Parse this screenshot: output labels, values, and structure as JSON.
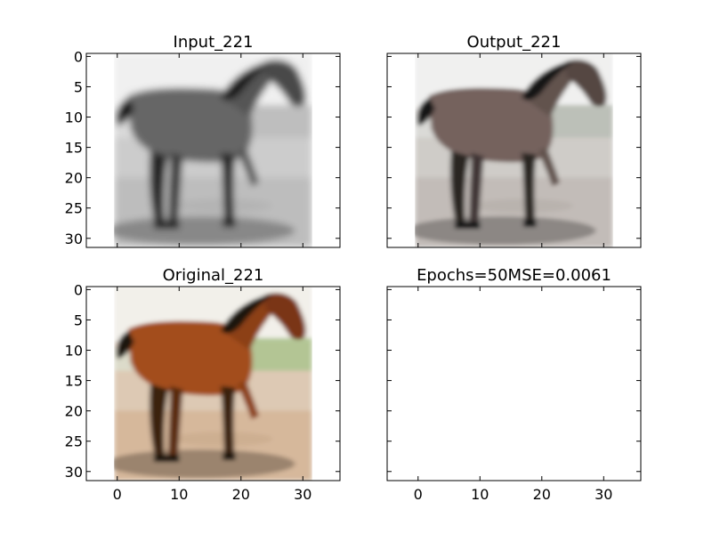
{
  "figure": {
    "background": "#ffffff"
  },
  "chart_data": [
    {
      "type": "image",
      "title": "Input_221",
      "image_shape": [
        32,
        32
      ],
      "colormap": "grayscale",
      "xlim": [
        -5,
        36
      ],
      "ylim": [
        31.5,
        -0.5
      ],
      "xticks": [
        0,
        10,
        20,
        30
      ],
      "yticks": [
        0,
        5,
        10,
        15,
        20,
        25,
        30
      ],
      "show_xtick_labels": false,
      "show_ytick_labels": true,
      "subject": "horse"
    },
    {
      "type": "image",
      "title": "Output_221",
      "image_shape": [
        32,
        32
      ],
      "colormap": "desaturated",
      "xlim": [
        -5,
        36
      ],
      "ylim": [
        31.5,
        -0.5
      ],
      "xticks": [
        0,
        10,
        20,
        30
      ],
      "yticks": [
        0,
        5,
        10,
        15,
        20,
        25,
        30
      ],
      "show_xtick_labels": false,
      "show_ytick_labels": false,
      "subject": "horse"
    },
    {
      "type": "image",
      "title": "Original_221",
      "image_shape": [
        32,
        32
      ],
      "colormap": "rgb",
      "xlim": [
        -5,
        36
      ],
      "ylim": [
        31.5,
        -0.5
      ],
      "xticks": [
        0,
        10,
        20,
        30
      ],
      "yticks": [
        0,
        5,
        10,
        15,
        20,
        25,
        30
      ],
      "show_xtick_labels": true,
      "show_ytick_labels": true,
      "subject": "horse"
    },
    {
      "type": "empty",
      "title": "Epochs=50MSE=0.0061",
      "xlim": [
        -5,
        36
      ],
      "ylim": [
        31.5,
        -0.5
      ],
      "xticks": [
        0,
        10,
        20,
        30
      ],
      "yticks": [
        0,
        5,
        10,
        15,
        20,
        25,
        30
      ],
      "show_xtick_labels": true,
      "show_ytick_labels": false
    }
  ]
}
